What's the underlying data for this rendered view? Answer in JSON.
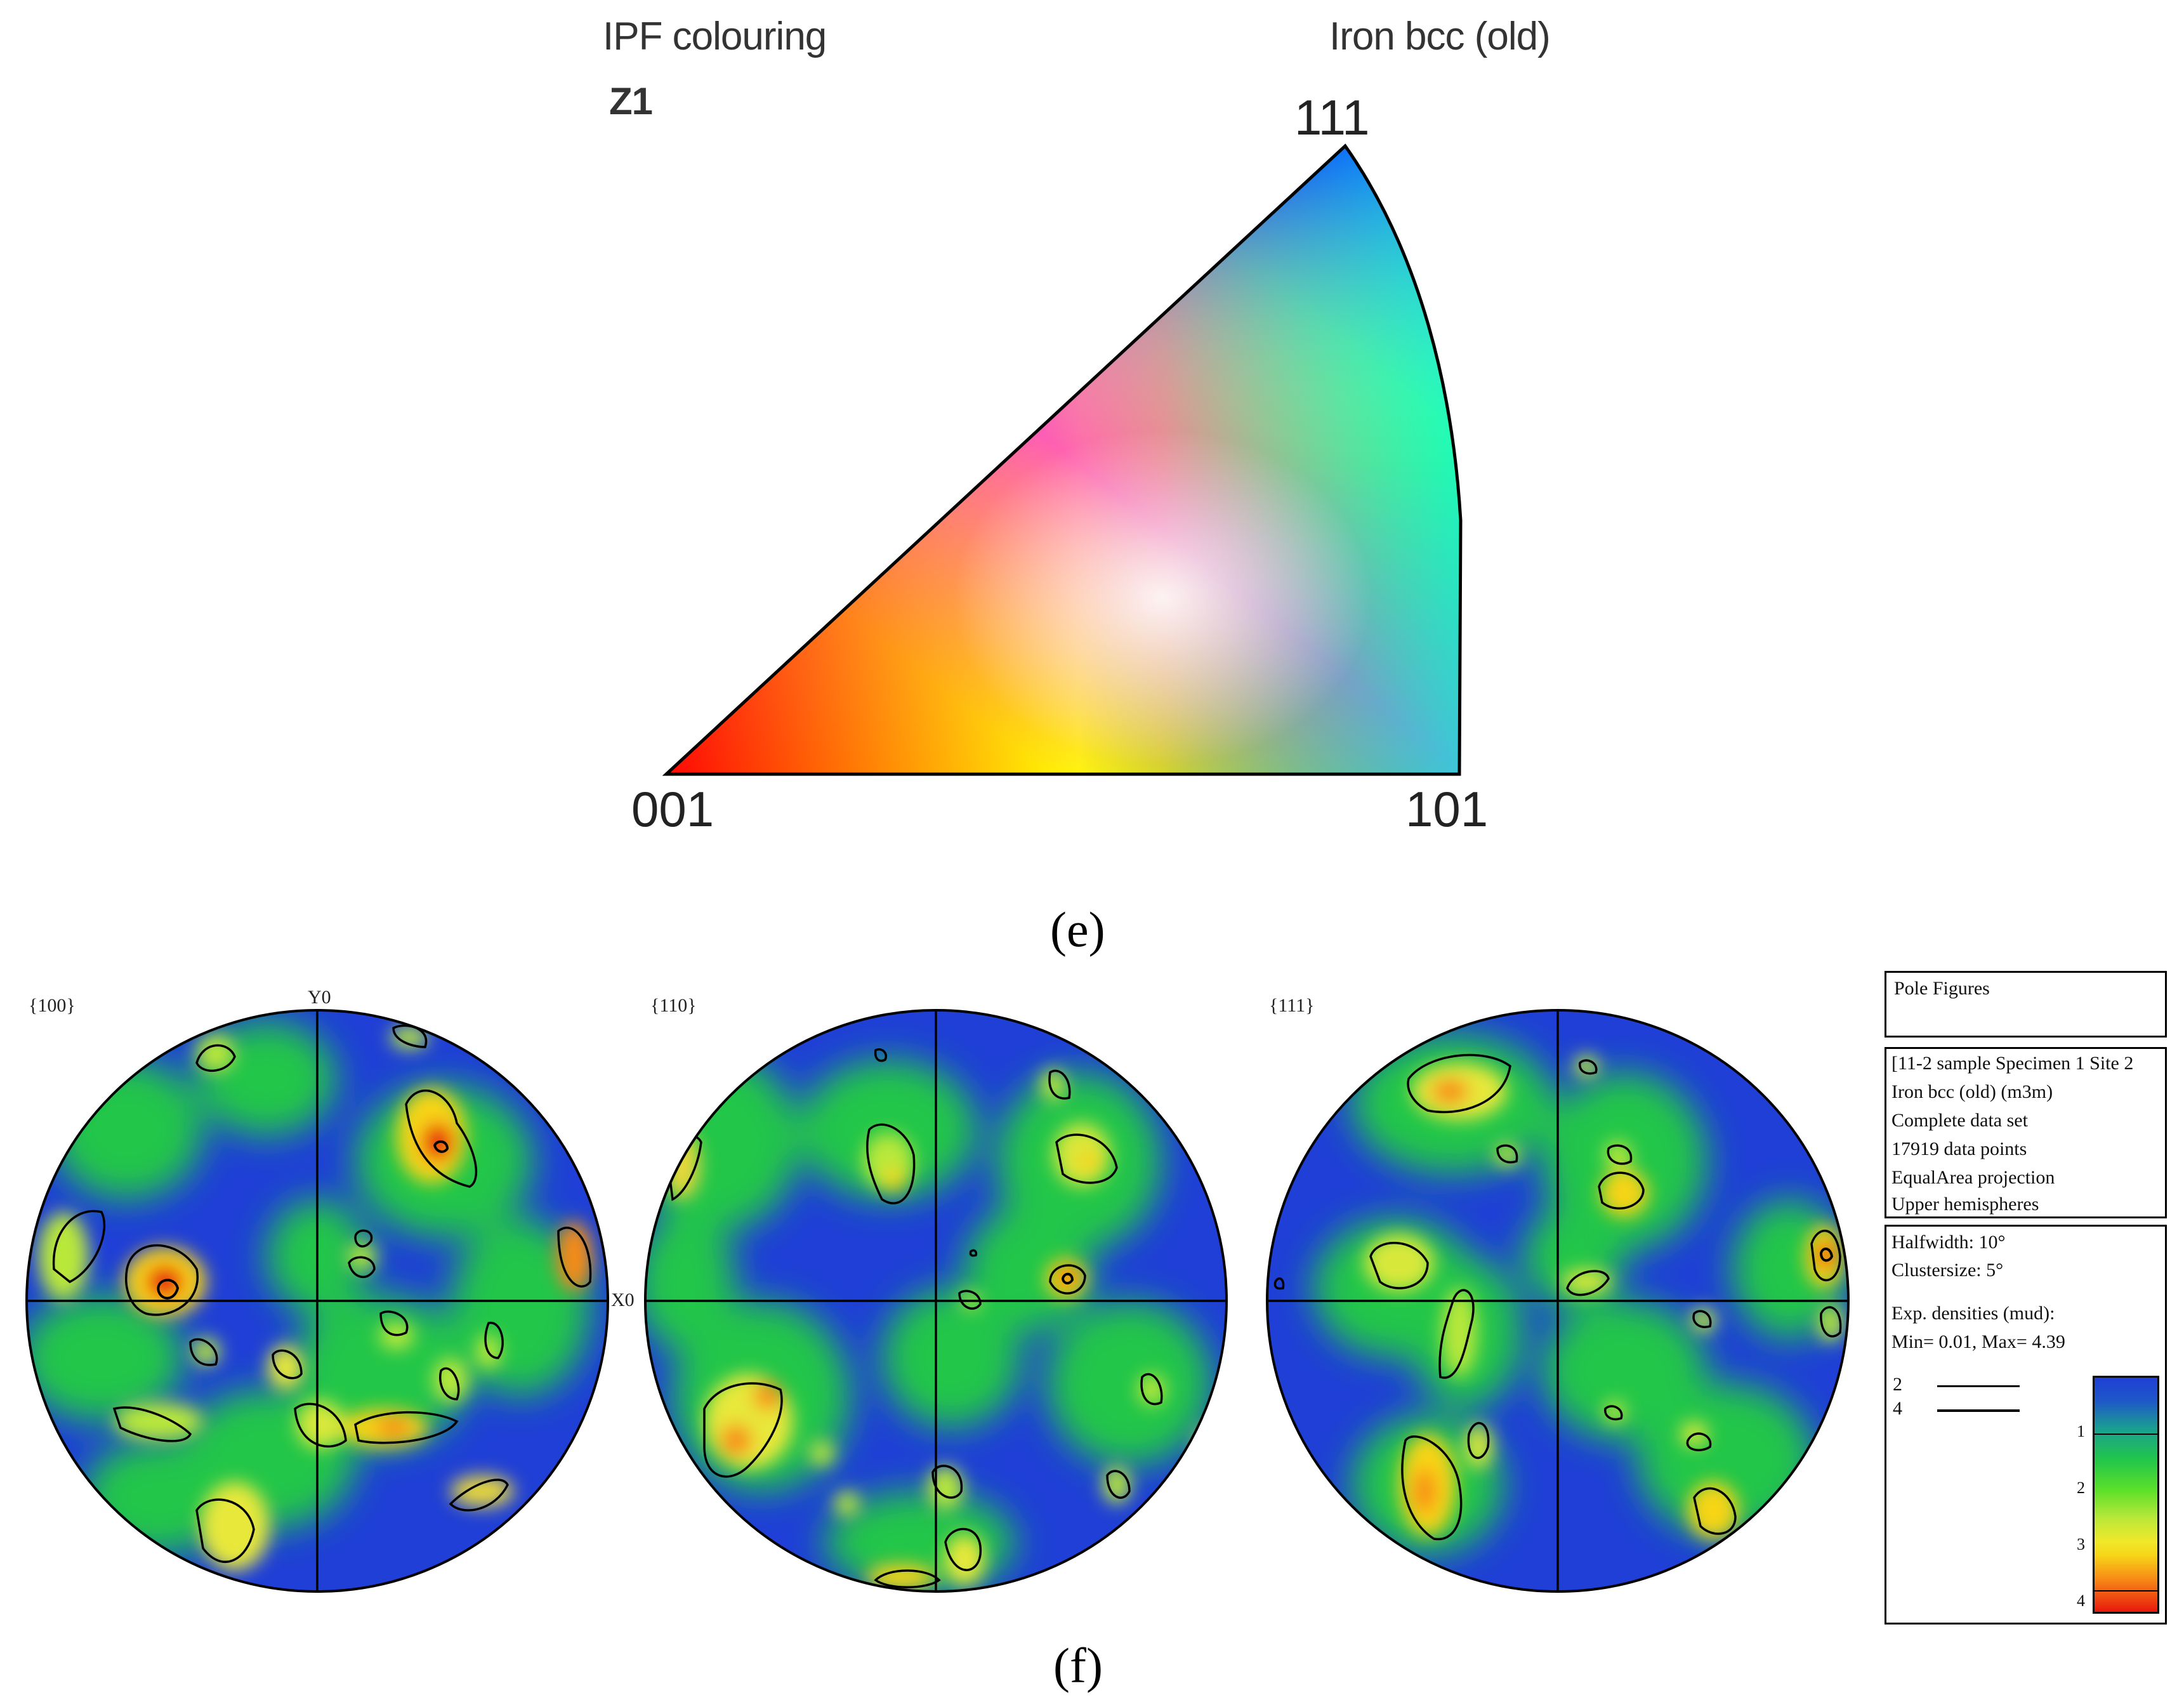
{
  "ipf": {
    "title": "IPF colouring",
    "phase": "Iron bcc (old)",
    "direction": "Z1",
    "corner_top": "111",
    "corner_left": "001",
    "corner_right": "101",
    "caption": "(e)"
  },
  "pole_figures": {
    "caption": "(f)",
    "axis_y": "Y0",
    "axis_x": "X0",
    "figures": [
      {
        "label": "{100}"
      },
      {
        "label": "{110}"
      },
      {
        "label": "{111}"
      }
    ]
  },
  "legend": {
    "title": "Pole Figures",
    "info": [
      "[11-2 sample Specimen 1 Site 2",
      "Iron bcc (old) (m3m)",
      "Complete data set",
      "17919 data points",
      "EqualArea projection",
      "Upper hemispheres"
    ],
    "halfwidth": "Halfwidth: 10°",
    "clustersize": "Clustersize: 5°",
    "densities_label": "Exp. densities (mud):",
    "min_max": "Min= 0.01, Max= 4.39",
    "contour_levels": [
      "2",
      "4"
    ],
    "scale_ticks": [
      "1",
      "2",
      "3",
      "4"
    ]
  },
  "colors": {
    "low": "#1f3fd6",
    "mid": "#27d127",
    "high": "#e8180c"
  }
}
